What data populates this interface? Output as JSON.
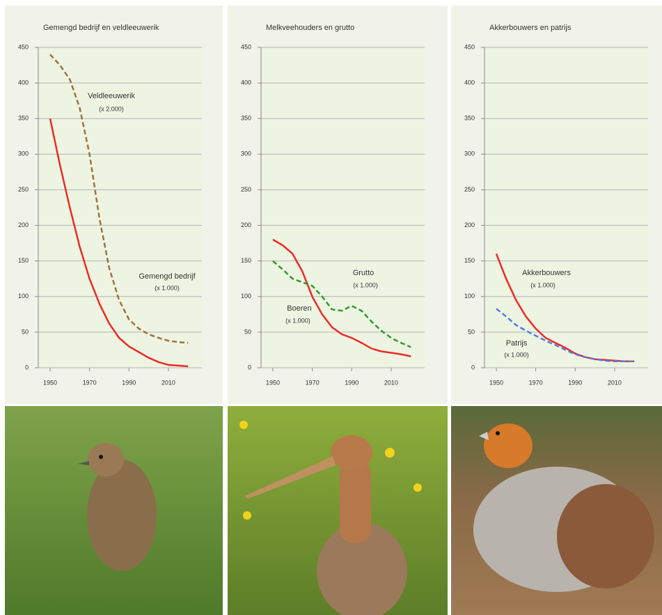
{
  "chart_data": [
    {
      "type": "line",
      "title": "Gemengd bedrijf en veldleeuwerik",
      "x": [
        1950,
        1955,
        1960,
        1965,
        1970,
        1975,
        1980,
        1985,
        1990,
        1995,
        2000,
        2005,
        2010,
        2015,
        2020
      ],
      "xlim": [
        1944,
        2027
      ],
      "xticks": [
        1950,
        1970,
        1990,
        2010
      ],
      "ylim": [
        0,
        450
      ],
      "yticks": [
        0,
        50,
        100,
        150,
        200,
        250,
        300,
        350,
        400,
        450
      ],
      "grid": true,
      "series": [
        {
          "name": "Gemengd bedrijf",
          "unit_label": "(x 1.000)",
          "color": "#ee2a24",
          "dashed": false,
          "values": [
            350,
            285,
            225,
            170,
            125,
            90,
            62,
            42,
            30,
            22,
            14,
            8,
            4,
            3,
            2
          ]
        },
        {
          "name": "Veldleeuwerik",
          "unit_label": "(x 2.000)",
          "color": "#a0703a",
          "dashed": true,
          "values": [
            440,
            425,
            405,
            365,
            300,
            210,
            140,
            95,
            68,
            55,
            47,
            42,
            38,
            36,
            35
          ]
        }
      ]
    },
    {
      "type": "line",
      "title": "Melkveehouders en grutto",
      "x": [
        1950,
        1955,
        1960,
        1965,
        1970,
        1975,
        1980,
        1985,
        1990,
        1995,
        2000,
        2005,
        2010,
        2015,
        2020
      ],
      "xlim": [
        1944,
        2027
      ],
      "xticks": [
        1950,
        1970,
        1990,
        2010
      ],
      "ylim": [
        0,
        450
      ],
      "yticks": [
        0,
        50,
        100,
        150,
        200,
        250,
        300,
        350,
        400,
        450
      ],
      "grid": true,
      "series": [
        {
          "name": "Boeren",
          "unit_label": "(x 1.000)",
          "color": "#ee2a24",
          "dashed": false,
          "values": [
            180,
            172,
            160,
            135,
            100,
            75,
            57,
            47,
            42,
            35,
            27,
            23,
            21,
            19,
            16
          ]
        },
        {
          "name": "Grutto",
          "unit_label": "(x 1.000)",
          "color": "#2e9b2e",
          "dashed": true,
          "values": [
            150,
            138,
            125,
            120,
            115,
            100,
            82,
            80,
            87,
            80,
            65,
            52,
            42,
            35,
            29
          ]
        }
      ]
    },
    {
      "type": "line",
      "title": "Akkerbouwers en patrijs",
      "x": [
        1950,
        1955,
        1960,
        1965,
        1970,
        1975,
        1980,
        1985,
        1990,
        1995,
        2000,
        2005,
        2010,
        2015,
        2020
      ],
      "xlim": [
        1944,
        2027
      ],
      "xticks": [
        1950,
        1970,
        1990,
        2010
      ],
      "ylim": [
        0,
        450
      ],
      "yticks": [
        0,
        50,
        100,
        150,
        200,
        250,
        300,
        350,
        400,
        450
      ],
      "grid": true,
      "series": [
        {
          "name": "Akkerbouwers",
          "unit_label": "(x 1.000)",
          "color": "#ee2a24",
          "dashed": false,
          "values": [
            160,
            125,
            95,
            72,
            55,
            42,
            35,
            28,
            20,
            15,
            12,
            11,
            10,
            9,
            9
          ]
        },
        {
          "name": "Patrijs",
          "unit_label": "(x 1.000)",
          "color": "#4a7de8",
          "dashed": true,
          "values": [
            83,
            72,
            60,
            52,
            45,
            38,
            32,
            25,
            19,
            15,
            12,
            10,
            9,
            9,
            9
          ]
        }
      ]
    }
  ]
}
